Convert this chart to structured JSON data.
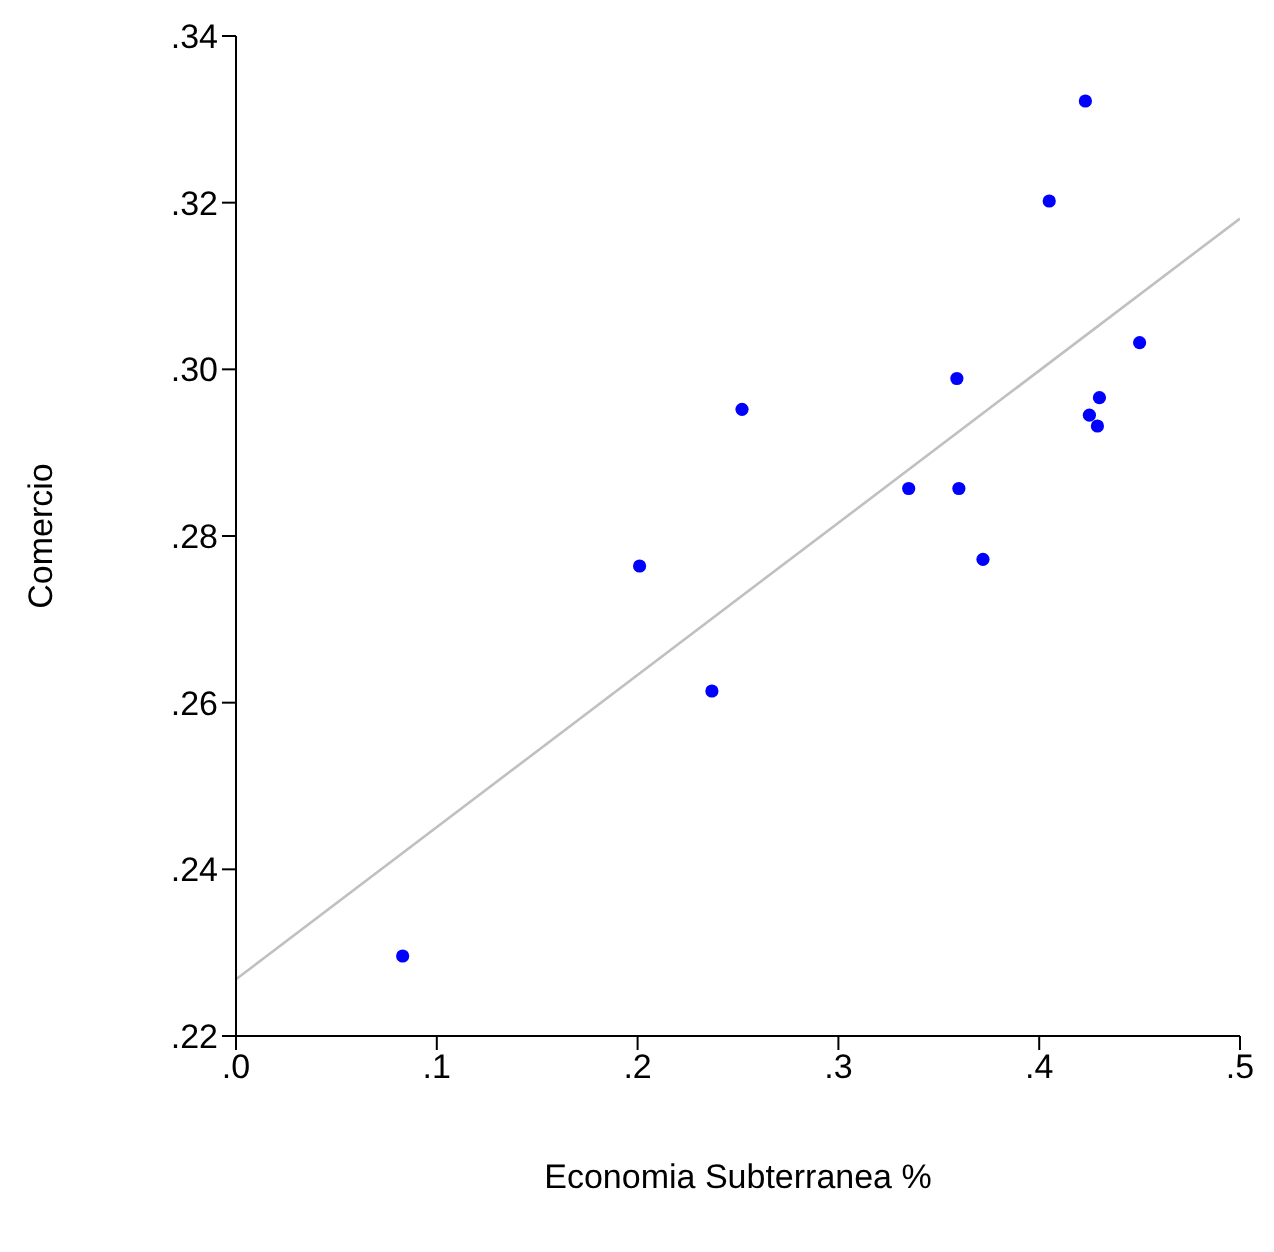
{
  "chart_data": {
    "type": "scatter",
    "xlabel": "Economia Subterranea %",
    "ylabel": "Comercio",
    "xlim": [
      0,
      0.5
    ],
    "xticks": [
      {
        "value": 0,
        "label": ".0"
      },
      {
        "value": 0.1,
        "label": ".1"
      },
      {
        "value": 0.2,
        "label": ".2"
      },
      {
        "value": 0.3,
        "label": ".3"
      },
      {
        "value": 0.4,
        "label": ".4"
      },
      {
        "value": 0.5,
        "label": ".5"
      }
    ],
    "ylim": [
      0.22,
      0.34
    ],
    "yticks": [
      {
        "value": 0.22,
        "label": ".22"
      },
      {
        "value": 0.24,
        "label": ".24"
      },
      {
        "value": 0.26,
        "label": ".26"
      },
      {
        "value": 0.28,
        "label": ".28"
      },
      {
        "value": 0.3,
        "label": ".30"
      },
      {
        "value": 0.32,
        "label": ".32"
      },
      {
        "value": 0.34,
        "label": ".34"
      }
    ],
    "grid": false,
    "legend": false,
    "marker": "circle",
    "series": [
      {
        "color": "#0000ff",
        "x": [
          0.083,
          0.201,
          0.237,
          0.252,
          0.335,
          0.359,
          0.36,
          0.372,
          0.405,
          0.423,
          0.425,
          0.429,
          0.43,
          0.45
        ],
        "values": [
          0.2296,
          0.2764,
          0.2614,
          0.2952,
          0.2857,
          0.2989,
          0.2857,
          0.2772,
          0.3202,
          0.3322,
          0.2945,
          0.2932,
          0.2966,
          0.3032
        ]
      },
      {
        "type": "line",
        "color": "#c0c0c0",
        "marker": "none",
        "x": [
          0,
          0.5
        ],
        "values": [
          0.2268,
          0.3181
        ]
      }
    ]
  }
}
